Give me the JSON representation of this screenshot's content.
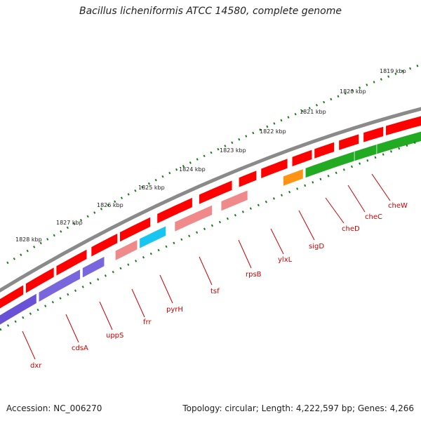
{
  "title": "Bacillus licheniformis ATCC 14580, complete genome",
  "footer": {
    "accession": "Accession: NC_006270",
    "stats": "Topology: circular; Length: 4,222,597 bp; Genes: 4,266"
  },
  "colors": {
    "backbone": "#8a8a8a",
    "cds_forward": "#ff0000",
    "scale_ticks": "#1a7a1a",
    "label_text": "#cc0000"
  },
  "scale_labels": [
    "1819 kbp",
    "1820 kbp",
    "1821 kbp",
    "1822 kbp",
    "1823 kbp",
    "1824 kbp",
    "1825 kbp",
    "1826 kbp",
    "1827 kbp",
    "1828 kbp"
  ],
  "genes": [
    {
      "name": "dxr",
      "color": "#6a52d6"
    },
    {
      "name": "cdsA",
      "color": "#7a66dc"
    },
    {
      "name": "uppS",
      "color": "#7a66dc"
    },
    {
      "name": "frr",
      "color": "#f08a8a"
    },
    {
      "name": "pyrH",
      "color": "#18c4f0"
    },
    {
      "name": "tsf",
      "color": "#f08a8a"
    },
    {
      "name": "rpsB",
      "color": "#f08a8a"
    },
    {
      "name": "ylxL",
      "color": "#ffffff"
    },
    {
      "name": "sigD",
      "color": "#ff9414"
    },
    {
      "name": "cheD",
      "color": "#22aa22"
    },
    {
      "name": "cheC",
      "color": "#22aa22"
    },
    {
      "name": "cheW",
      "color": "#22aa22"
    }
  ]
}
